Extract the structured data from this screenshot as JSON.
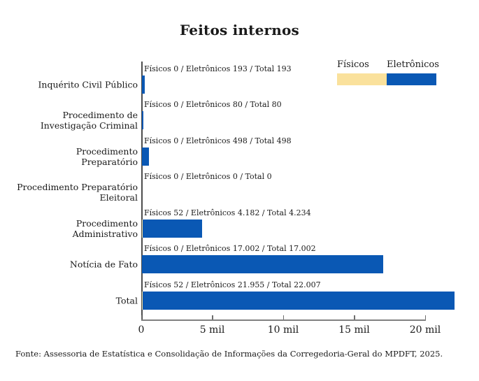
{
  "title": "Feitos internos",
  "legend": {
    "items": [
      {
        "id": "fisicos",
        "label": "Físicos",
        "color": "#FAE19C"
      },
      {
        "id": "eletronicos",
        "label": "Eletrônicos",
        "color": "#0A58B4"
      }
    ]
  },
  "footer": "Fonte: Assessoria de Estatística e Consolidação de Informações da Corregedoria-Geral do MPDFT, 2025.",
  "colors": {
    "fisicos": "#FAE19C",
    "eletronicos": "#0A58B4",
    "axis": "#808080",
    "text": "#1a1a1a"
  },
  "chart_data": {
    "type": "bar",
    "orientation": "horizontal",
    "title": "Feitos internos",
    "xlabel": "",
    "ylabel": "",
    "xlim": [
      0,
      22500
    ],
    "grid": false,
    "legend_position": "top-right",
    "series_names": [
      "Físicos",
      "Eletrônicos"
    ],
    "xticks": [
      {
        "value": 0,
        "label": "0"
      },
      {
        "value": 5000,
        "label": "5 mil"
      },
      {
        "value": 10000,
        "label": "10 mil"
      },
      {
        "value": 15000,
        "label": "15 mil"
      },
      {
        "value": 20000,
        "label": "20 mil"
      }
    ],
    "rows": [
      {
        "category": "Inquérito Civil Público",
        "fisicos": 0,
        "eletronicos": 193,
        "total": 193,
        "annotation": "Físicos 0 / Eletrônicos 193 / Total 193"
      },
      {
        "category": "Procedimento de\nInvestigação Criminal",
        "fisicos": 0,
        "eletronicos": 80,
        "total": 80,
        "annotation": "Físicos 0 / Eletrônicos 80 / Total 80"
      },
      {
        "category": "Procedimento\nPreparatório",
        "fisicos": 0,
        "eletronicos": 498,
        "total": 498,
        "annotation": "Físicos 0 / Eletrônicos 498 / Total 498"
      },
      {
        "category": "Procedimento Preparatório\nEleitoral",
        "fisicos": 0,
        "eletronicos": 0,
        "total": 0,
        "annotation": "Físicos 0 / Eletrônicos 0 / Total 0"
      },
      {
        "category": "Procedimento\nAdministrativo",
        "fisicos": 52,
        "eletronicos": 4182,
        "total": 4234,
        "annotation": "Físicos 52 / Eletrônicos 4.182 / Total 4.234"
      },
      {
        "category": "Notícia de Fato",
        "fisicos": 0,
        "eletronicos": 17002,
        "total": 17002,
        "annotation": "Físicos 0 / Eletrônicos 17.002 / Total 17.002"
      },
      {
        "category": "Total",
        "fisicos": 52,
        "eletronicos": 21955,
        "total": 22007,
        "annotation": "Físicos 52 / Eletrônicos 21.955 / Total 22.007"
      }
    ]
  }
}
